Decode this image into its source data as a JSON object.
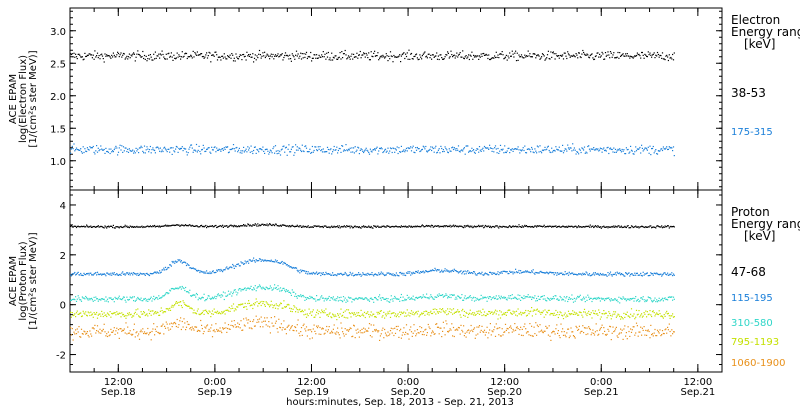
{
  "chart_data": [
    {
      "type": "scatter",
      "ylabel_lines": [
        "ACE EPAM",
        "log(Electron Flux)",
        "[1/(cm²s ster MeV)]"
      ],
      "ylim": [
        0.55,
        3.35
      ],
      "yticks": [
        1.0,
        1.5,
        2.0,
        2.5,
        3.0
      ],
      "ytick_labels": [
        "1.0",
        "1.5",
        "2.0",
        "2.5",
        "3.0"
      ],
      "legend": {
        "title_lines": [
          "Electron",
          "Energy ranges",
          "[keV]"
        ],
        "placement": "right"
      },
      "series": [
        {
          "name": "38-53",
          "color": "#000000",
          "mean": 2.62,
          "spread": 0.06
        },
        {
          "name": "175-315",
          "color": "#1a7fd9",
          "mean": 1.18,
          "spread": 0.06
        }
      ]
    },
    {
      "type": "scatter",
      "ylabel_lines": [
        "ACE EPAM",
        "log(Proton Flux)",
        "[1/(cm²s ster MeV)]"
      ],
      "ylim": [
        -2.7,
        4.6
      ],
      "yticks": [
        -2,
        0,
        2,
        4
      ],
      "ytick_labels": [
        "-2",
        "0",
        "2",
        "4"
      ],
      "legend": {
        "title_lines": [
          "Proton",
          "Energy ranges",
          "[keV]"
        ],
        "placement": "right"
      },
      "series": [
        {
          "name": "47-68",
          "color": "#000000",
          "mean": 3.15,
          "spread": 0.04
        },
        {
          "name": "115-195",
          "color": "#1a7fd9",
          "mean": 1.25,
          "spread": 0.07
        },
        {
          "name": "310-580",
          "color": "#2fd6c8",
          "mean": 0.25,
          "spread": 0.1
        },
        {
          "name": "795-1193",
          "color": "#c4e000",
          "mean": -0.35,
          "spread": 0.15
        },
        {
          "name": "1060-1900",
          "color": "#e8901a",
          "mean": -1.05,
          "spread": 0.25
        }
      ]
    }
  ],
  "x_axis": {
    "start": "Sep.18 06:00",
    "end": "Sep.21 15:00",
    "data_start": "Sep.18 06:00",
    "data_end": "Sep.21 09:00",
    "major_ticks": [
      {
        "time": "12:00",
        "day": "Sep.18",
        "hour": 6
      },
      {
        "time": "0:00",
        "day": "Sep.19",
        "hour": 18
      },
      {
        "time": "12:00",
        "day": "Sep.19",
        "hour": 30
      },
      {
        "time": "0:00",
        "day": "Sep.20",
        "hour": 42
      },
      {
        "time": "12:00",
        "day": "Sep.20",
        "hour": 54
      },
      {
        "time": "0:00",
        "day": "Sep.21",
        "hour": 66
      },
      {
        "time": "12:00",
        "day": "Sep.21",
        "hour": 78
      }
    ],
    "xlabel": "hours:minutes, Sep. 18, 2013 - Sep. 21, 2013"
  }
}
